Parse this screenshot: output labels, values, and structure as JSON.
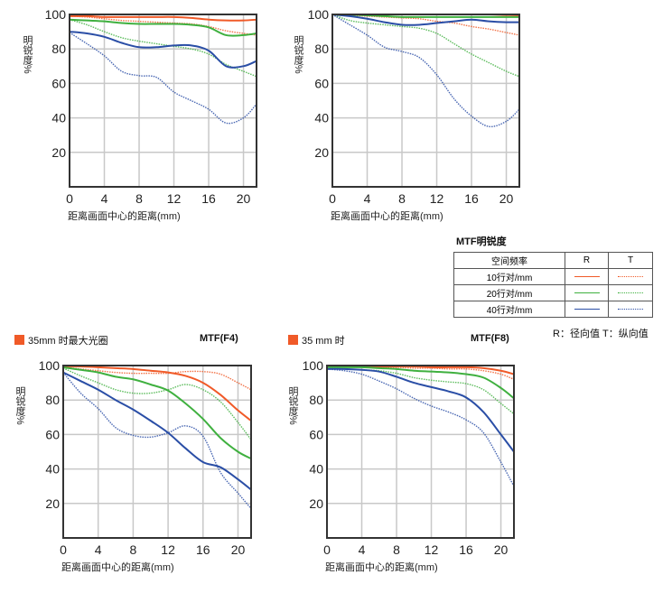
{
  "colors": {
    "10": "#f05a28",
    "20": "#3fb03f",
    "40": "#2a4ea6",
    "frame": "#333333",
    "grid": "#c8c8c8"
  },
  "legend": {
    "title": "MTF明锐度",
    "header": [
      "空间频率",
      "R",
      "T"
    ],
    "rows": [
      {
        "label": "10行对/mm",
        "key": "10"
      },
      {
        "label": "20行对/mm",
        "key": "20"
      },
      {
        "label": "40行对/mm",
        "key": "40"
      }
    ],
    "note": "R：径向值  T：纵向值"
  },
  "section_f4": {
    "label": "35mm 时最大光圈",
    "title": "MTF(F4)",
    "marker_color": "#f05a28"
  },
  "section_f8": {
    "label": "35 mm 时",
    "title": "MTF(F8)",
    "marker_color": "#f05a28"
  },
  "chart_data": [
    {
      "type": "line",
      "title": "",
      "xlabel": "距离画面中心的距离(mm)",
      "ylabel": "明锐度%",
      "xlim": [
        0,
        21.5
      ],
      "ylim": [
        0,
        100
      ],
      "xticks": [
        0,
        4,
        8,
        12,
        16,
        20
      ],
      "yticks": [
        20,
        40,
        60,
        80,
        100
      ],
      "grid": true,
      "x": [
        0,
        2,
        4,
        6,
        8,
        10,
        12,
        14,
        16,
        18,
        20,
        21.5
      ],
      "series": [
        {
          "freq": "10",
          "kind": "R",
          "values": [
            99,
            99,
            98.5,
            98.5,
            98.5,
            98.5,
            98.5,
            98,
            97,
            96.5,
            96.5,
            97
          ]
        },
        {
          "freq": "10",
          "kind": "T",
          "values": [
            99,
            98.5,
            97.5,
            96.5,
            96,
            95.5,
            95,
            94.5,
            93,
            90.5,
            89,
            88
          ]
        },
        {
          "freq": "20",
          "kind": "R",
          "values": [
            97,
            96.5,
            96,
            95,
            94.5,
            94.5,
            94.5,
            94,
            92.5,
            88,
            88,
            89
          ]
        },
        {
          "freq": "20",
          "kind": "T",
          "values": [
            97,
            94,
            90,
            86.5,
            84.5,
            83,
            81.5,
            80,
            77,
            71,
            67,
            64
          ]
        },
        {
          "freq": "40",
          "kind": "R",
          "values": [
            90,
            89,
            87,
            83.5,
            81,
            81,
            82,
            82,
            79,
            70,
            70,
            73
          ]
        },
        {
          "freq": "40",
          "kind": "T",
          "values": [
            89.5,
            83,
            76,
            67,
            64.5,
            63.5,
            55,
            50,
            45,
            37,
            40,
            48
          ]
        }
      ]
    },
    {
      "type": "line",
      "title": "",
      "xlabel": "距离画面中心的距离(mm)",
      "ylabel": "明锐度%",
      "xlim": [
        0,
        21.5
      ],
      "ylim": [
        0,
        100
      ],
      "xticks": [
        0,
        4,
        8,
        12,
        16,
        20
      ],
      "yticks": [
        20,
        40,
        60,
        80,
        100
      ],
      "grid": true,
      "x": [
        0,
        2,
        4,
        6,
        8,
        10,
        12,
        14,
        16,
        18,
        20,
        21.5
      ],
      "series": [
        {
          "freq": "10",
          "kind": "R",
          "values": [
            100,
            100,
            100,
            100,
            100,
            100,
            100,
            100,
            100,
            100,
            99.7,
            99.5
          ]
        },
        {
          "freq": "10",
          "kind": "T",
          "values": [
            100,
            99.5,
            99,
            98.5,
            98,
            97.5,
            96,
            95,
            93,
            91.5,
            89.5,
            88
          ]
        },
        {
          "freq": "20",
          "kind": "R",
          "values": [
            100,
            99.8,
            99.5,
            99,
            98.5,
            98.5,
            98.5,
            98.5,
            98.5,
            98.5,
            98.5,
            98.5
          ]
        },
        {
          "freq": "20",
          "kind": "T",
          "values": [
            100,
            96.5,
            95,
            94,
            93,
            92,
            89,
            83,
            77,
            72,
            67,
            64
          ]
        },
        {
          "freq": "40",
          "kind": "R",
          "values": [
            100,
            99,
            97.5,
            95.5,
            94,
            94,
            95,
            96,
            97,
            96,
            95.5,
            95.5
          ]
        },
        {
          "freq": "40",
          "kind": "T",
          "values": [
            100,
            94,
            88,
            81,
            78.5,
            75,
            65,
            51,
            41,
            35,
            38,
            45
          ]
        }
      ]
    },
    {
      "type": "line",
      "title": "MTF(F4)",
      "xlabel": "距离画面中心的距离(mm)",
      "ylabel": "明锐度%",
      "xlim": [
        0,
        21.5
      ],
      "ylim": [
        0,
        100
      ],
      "xticks": [
        0,
        4,
        8,
        12,
        16,
        20
      ],
      "yticks": [
        20,
        40,
        60,
        80,
        100
      ],
      "grid": true,
      "x": [
        0,
        2,
        4,
        6,
        8,
        10,
        12,
        14,
        16,
        18,
        20,
        21.5
      ],
      "series": [
        {
          "freq": "10",
          "kind": "R",
          "values": [
            99.5,
            99.5,
            99,
            98.5,
            98,
            97,
            96,
            94,
            90,
            83,
            74,
            68
          ]
        },
        {
          "freq": "10",
          "kind": "T",
          "values": [
            99,
            98,
            97,
            96,
            95.5,
            95.5,
            95.5,
            96.5,
            96.5,
            95,
            90,
            86
          ]
        },
        {
          "freq": "20",
          "kind": "R",
          "values": [
            99,
            97.5,
            96,
            93.5,
            92,
            89,
            85.5,
            78,
            69,
            58,
            50,
            46
          ]
        },
        {
          "freq": "20",
          "kind": "T",
          "values": [
            98.5,
            94,
            90,
            86,
            84,
            84,
            86,
            89,
            86,
            79,
            67,
            57
          ]
        },
        {
          "freq": "40",
          "kind": "R",
          "values": [
            96,
            91,
            86,
            80,
            74.5,
            68,
            61,
            52,
            44,
            41,
            34,
            28
          ]
        },
        {
          "freq": "40",
          "kind": "T",
          "values": [
            96,
            84,
            75,
            64,
            59.5,
            58.5,
            61,
            65,
            59,
            38,
            26,
            17
          ]
        }
      ]
    },
    {
      "type": "line",
      "title": "MTF(F8)",
      "xlabel": "距离画面中心的距离(mm)",
      "ylabel": "明锐度%",
      "xlim": [
        0,
        21.5
      ],
      "ylim": [
        0,
        100
      ],
      "xticks": [
        0,
        4,
        8,
        12,
        16,
        20
      ],
      "yticks": [
        20,
        40,
        60,
        80,
        100
      ],
      "grid": true,
      "x": [
        0,
        2,
        4,
        6,
        8,
        10,
        12,
        14,
        16,
        18,
        20,
        21.5
      ],
      "series": [
        {
          "freq": "10",
          "kind": "R",
          "values": [
            99.5,
            99.5,
            99.5,
            99.5,
            99.5,
            99.5,
            99,
            99,
            99,
            98.5,
            97,
            95
          ]
        },
        {
          "freq": "10",
          "kind": "T",
          "values": [
            99,
            99,
            99,
            99,
            99,
            98.5,
            98.5,
            98,
            98,
            97,
            95,
            92
          ]
        },
        {
          "freq": "20",
          "kind": "R",
          "values": [
            99,
            99,
            99,
            98.5,
            98,
            97,
            96.5,
            96,
            95,
            93,
            87,
            81
          ]
        },
        {
          "freq": "20",
          "kind": "T",
          "values": [
            98.5,
            98,
            97.5,
            97,
            95.5,
            93,
            91.5,
            90.5,
            89.5,
            86,
            78,
            72
          ]
        },
        {
          "freq": "40",
          "kind": "R",
          "values": [
            98,
            98,
            97.5,
            96.5,
            93.5,
            90,
            87.5,
            85,
            81.5,
            73,
            60,
            50
          ]
        },
        {
          "freq": "40",
          "kind": "T",
          "values": [
            98,
            97,
            95,
            91,
            86.5,
            81,
            76.5,
            73,
            68.5,
            61,
            44,
            30
          ]
        }
      ]
    }
  ]
}
